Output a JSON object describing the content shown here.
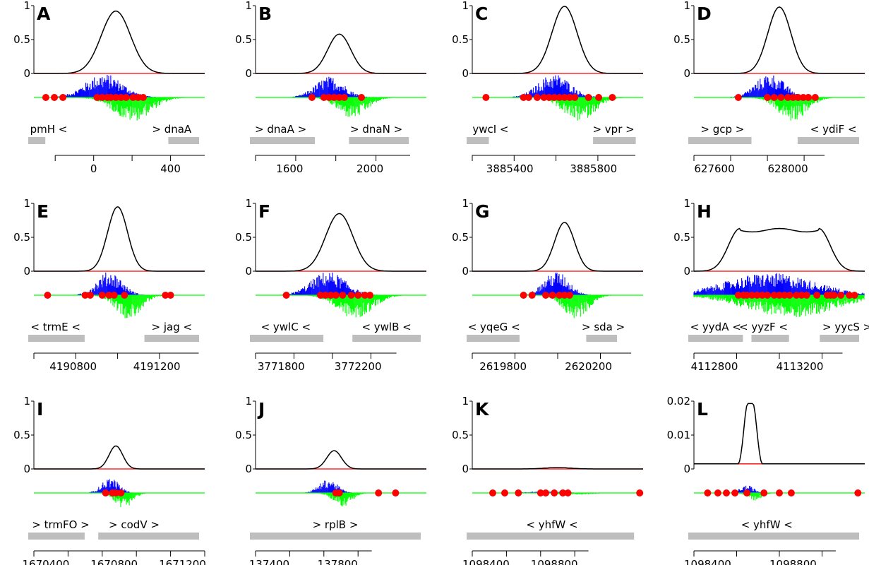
{
  "chart_data": [
    {
      "type": "line",
      "letter": "A",
      "peak": 0.92,
      "center": 0.48,
      "width": 0.28,
      "flat": 0,
      "yticks": [
        "1",
        "0.5",
        "0"
      ],
      "dots": [
        0.07,
        0.12,
        0.17,
        0.37,
        0.4,
        0.43,
        0.45,
        0.48,
        0.51,
        0.54,
        0.58,
        0.61,
        0.64
      ],
      "genes": [
        {
          "label": "pmH <",
          "start": 0.0,
          "end": 0.1,
          "label_x": 0.12
        },
        {
          "label": "> dnaA",
          "start": 0.82,
          "end": 1.0,
          "label_x": 0.84
        }
      ],
      "xticks": [
        "0",
        "400"
      ],
      "xtick_positions": [
        0.35,
        0.8
      ]
    },
    {
      "type": "line",
      "letter": "B",
      "peak": 0.58,
      "center": 0.49,
      "width": 0.22,
      "flat": 0,
      "yticks": [
        "1",
        "0.5",
        "0"
      ],
      "dots": [
        0.33,
        0.4,
        0.43,
        0.46,
        0.49,
        0.52,
        0.62
      ],
      "genes": [
        {
          "label": "> dnaA >",
          "start": 0.0,
          "end": 0.38,
          "label_x": 0.18
        },
        {
          "label": "> dnaN >",
          "start": 0.58,
          "end": 0.93,
          "label_x": 0.74
        }
      ],
      "xticks": [
        "1600",
        "2000"
      ],
      "xtick_positions": [
        0.2,
        0.67
      ]
    },
    {
      "type": "line",
      "letter": "C",
      "peak": 0.99,
      "center": 0.54,
      "width": 0.24,
      "flat": 0,
      "yticks": [
        "1",
        "0.5",
        "0"
      ],
      "dots": [
        0.08,
        0.3,
        0.33,
        0.38,
        0.42,
        0.45,
        0.48,
        0.51,
        0.54,
        0.57,
        0.6,
        0.68,
        0.74,
        0.82
      ],
      "genes": [
        {
          "label": "ywcI <",
          "start": 0.0,
          "end": 0.13,
          "label_x": 0.14
        },
        {
          "label": "> vpr >",
          "start": 0.74,
          "end": 0.99,
          "label_x": 0.86
        }
      ],
      "xticks": [
        "3885400",
        "3885800"
      ],
      "xtick_positions": [
        0.22,
        0.71
      ]
    },
    {
      "type": "line",
      "letter": "D",
      "peak": 0.98,
      "center": 0.5,
      "width": 0.22,
      "flat": 0,
      "yticks": [
        "1",
        "0.5",
        "0"
      ],
      "dots": [
        0.26,
        0.43,
        0.47,
        0.51,
        0.55,
        0.58,
        0.61,
        0.64,
        0.67,
        0.71
      ],
      "genes": [
        {
          "label": "> gcp >",
          "start": 0.0,
          "end": 0.37,
          "label_x": 0.2
        },
        {
          "label": "< ydiF <",
          "start": 0.64,
          "end": 1.0,
          "label_x": 0.85
        }
      ],
      "xticks": [
        "627600",
        "628000"
      ],
      "xtick_positions": [
        0.12,
        0.55
      ]
    },
    {
      "type": "line",
      "letter": "E",
      "peak": 0.95,
      "center": 0.49,
      "width": 0.19,
      "flat": 0,
      "yticks": [
        "1",
        "0.5",
        "0"
      ],
      "dots": [
        0.08,
        0.3,
        0.33,
        0.4,
        0.44,
        0.47,
        0.53,
        0.77,
        0.8
      ],
      "genes": [
        {
          "label": "< trmE <",
          "start": 0.0,
          "end": 0.33,
          "label_x": 0.16
        },
        {
          "label": "> jag <",
          "start": 0.68,
          "end": 1.0,
          "label_x": 0.84
        }
      ],
      "xticks": [
        "4190800",
        "4191200"
      ],
      "xtick_positions": [
        0.23,
        0.72
      ]
    },
    {
      "type": "line",
      "letter": "F",
      "peak": 0.85,
      "center": 0.49,
      "width": 0.26,
      "flat": 0,
      "yticks": [
        "1",
        "0.5",
        "0"
      ],
      "dots": [
        0.18,
        0.38,
        0.41,
        0.44,
        0.47,
        0.51,
        0.56,
        0.6,
        0.64,
        0.67
      ],
      "genes": [
        {
          "label": "< ywlC <",
          "start": 0.0,
          "end": 0.43,
          "label_x": 0.21
        },
        {
          "label": "< ywlB <",
          "start": 0.6,
          "end": 1.0,
          "label_x": 0.8
        }
      ],
      "xticks": [
        "3771800",
        "3772200"
      ],
      "xtick_positions": [
        0.15,
        0.6
      ]
    },
    {
      "type": "line",
      "letter": "G",
      "peak": 0.72,
      "center": 0.54,
      "width": 0.19,
      "flat": 0,
      "yticks": [
        "1",
        "0.5",
        "0"
      ],
      "dots": [
        0.3,
        0.35,
        0.43,
        0.47,
        0.51,
        0.54,
        0.57
      ],
      "genes": [
        {
          "label": "< yqeG <",
          "start": 0.0,
          "end": 0.31,
          "label_x": 0.16
        },
        {
          "label": "> sda >",
          "start": 0.7,
          "end": 0.88,
          "label_x": 0.8
        }
      ],
      "xticks": [
        "2619800",
        "2620200"
      ],
      "xtick_positions": [
        0.18,
        0.68
      ]
    },
    {
      "type": "line",
      "letter": "H",
      "peak": 0.63,
      "center": 0.5,
      "width": 0.22,
      "flat": 0.46,
      "yticks": [
        "1",
        "0.5",
        "0"
      ],
      "dots": [
        0.26,
        0.29,
        0.31,
        0.34,
        0.37,
        0.4,
        0.43,
        0.47,
        0.5,
        0.53,
        0.56,
        0.6,
        0.63,
        0.66,
        0.72,
        0.78,
        0.8,
        0.82,
        0.86,
        0.91,
        0.94
      ],
      "genes": [
        {
          "label": "< yydA <",
          "start": 0.0,
          "end": 0.32,
          "label_x": 0.16
        },
        {
          "label": "< yyzF <",
          "start": 0.37,
          "end": 0.59,
          "label_x": 0.44
        },
        {
          "label": "> yycS >",
          "start": 0.77,
          "end": 1.0,
          "label_x": 0.93
        }
      ],
      "xticks": [
        "4112800",
        "4113200"
      ],
      "xtick_positions": [
        0.12,
        0.62
      ]
    },
    {
      "type": "line",
      "letter": "I",
      "peak": 0.34,
      "center": 0.48,
      "width": 0.13,
      "flat": 0,
      "yticks": [
        "1",
        "0.5",
        "0"
      ],
      "dots": [
        0.42,
        0.46,
        0.48,
        0.51
      ],
      "genes": [
        {
          "label": "> trmFO >",
          "start": 0.0,
          "end": 0.33,
          "label_x": 0.19
        },
        {
          "label": "> codV >",
          "start": 0.41,
          "end": 1.0,
          "label_x": 0.62
        }
      ],
      "xticks": [
        "1670400",
        "1670800",
        "1671200"
      ],
      "xtick_positions": [
        0.07,
        0.47,
        0.87
      ]
    },
    {
      "type": "line",
      "letter": "J",
      "peak": 0.27,
      "center": 0.46,
      "width": 0.14,
      "flat": 0,
      "yticks": [
        "1",
        "0.5",
        "0"
      ],
      "dots": [
        0.47,
        0.49,
        0.72,
        0.82
      ],
      "genes": [
        {
          "label": "> rplB >",
          "start": 0.0,
          "end": 1.0,
          "label_x": 0.5
        }
      ],
      "xticks": [
        "137400",
        "137800"
      ],
      "xtick_positions": [
        0.08,
        0.48
      ]
    },
    {
      "type": "line",
      "letter": "K",
      "peak": 0.02,
      "center": 0.5,
      "width": 0.25,
      "flat": 0,
      "yticks": [
        "1",
        "0.5",
        "0"
      ],
      "dots": [
        0.12,
        0.19,
        0.27,
        0.4,
        0.43,
        0.48,
        0.53,
        0.56,
        0.98
      ],
      "genes": [
        {
          "label": "< yhfW <",
          "start": 0.0,
          "end": 0.98,
          "label_x": 0.5
        }
      ],
      "xticks": [
        "1098400",
        "1098800"
      ],
      "xtick_positions": [
        0.08,
        0.48
      ]
    },
    {
      "type": "line",
      "letter": "L",
      "peak": 0.0193,
      "center": 0.33,
      "width": 0.075,
      "flat": 0.03,
      "baseline": 0.0015,
      "ylim": [
        0,
        0.02
      ],
      "yticks": [
        "0.02",
        "0.01",
        "0"
      ],
      "dots": [
        0.08,
        0.14,
        0.19,
        0.24,
        0.31,
        0.41,
        0.5,
        0.57,
        0.96
      ],
      "genes": [
        {
          "label": "< yhfW <",
          "start": 0.0,
          "end": 1.0,
          "label_x": 0.46
        }
      ],
      "xticks": [
        "1098400",
        "1098800"
      ],
      "xtick_positions": [
        0.08,
        0.58
      ]
    }
  ],
  "colors": {
    "curve": "#000000",
    "baseline": "#ff0000",
    "plus_strand": "#0000ff",
    "minus_strand": "#00ff00",
    "dots": "#ff0000",
    "gene": "#bebebe"
  }
}
